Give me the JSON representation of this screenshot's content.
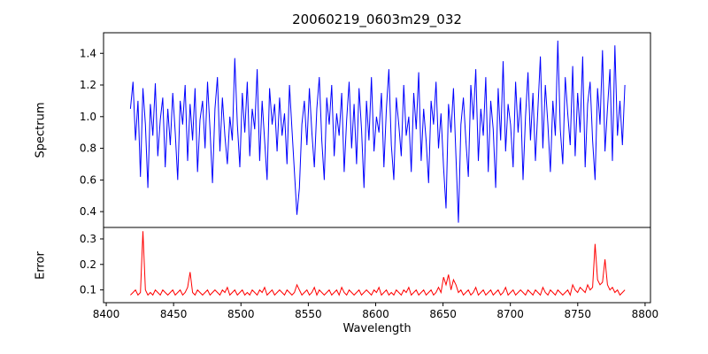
{
  "chart_data": {
    "type": "line",
    "title": "20060219_0603m29_032",
    "xlabel": "Wavelength",
    "xlim": [
      8398,
      8804
    ],
    "xticks": [
      "8400",
      "8450",
      "8500",
      "8550",
      "8600",
      "8650",
      "8700",
      "8750",
      "8800"
    ],
    "grid": false,
    "legend": "none",
    "panels": [
      {
        "name": "spectrum",
        "ylabel": "Spectrum",
        "ylim": [
          0.3,
          1.53
        ],
        "yticks": [
          "0.4",
          "0.6",
          "0.8",
          "1.0",
          "1.2",
          "1.4"
        ],
        "series": {
          "name": "spectrum",
          "color": "#0000ff",
          "x_start": 8418,
          "x_end": 8785,
          "values": [
            1.05,
            1.22,
            0.85,
            1.1,
            0.62,
            1.18,
            0.95,
            0.55,
            1.08,
            0.88,
            1.21,
            0.75,
            0.98,
            1.12,
            0.68,
            1.05,
            0.82,
            1.15,
            0.9,
            0.6,
            1.1,
            0.95,
            1.2,
            0.72,
            1.08,
            0.85,
            1.18,
            0.65,
            0.98,
            1.1,
            0.8,
            1.22,
            0.92,
            0.58,
            1.05,
            1.25,
            0.78,
            1.12,
            0.88,
            0.7,
            1.0,
            0.85,
            1.37,
            0.95,
            0.68,
            1.15,
            0.9,
            1.22,
            0.75,
            1.05,
            0.92,
            1.3,
            0.72,
            1.1,
            0.85,
            0.6,
            1.18,
            0.95,
            1.08,
            0.78,
            1.12,
            0.88,
            1.02,
            0.7,
            1.2,
            0.92,
            0.65,
            0.38,
            0.55,
            0.95,
            1.1,
            0.82,
            1.18,
            0.9,
            0.68,
            1.05,
            1.25,
            0.85,
            0.6,
            1.12,
            0.95,
            1.2,
            0.75,
            1.02,
            0.88,
            1.15,
            0.65,
            0.98,
            1.22,
            0.8,
            1.08,
            0.7,
            1.18,
            0.92,
            0.55,
            1.1,
            0.85,
            1.25,
            0.78,
            1.0,
            0.9,
            1.15,
            0.68,
            1.05,
            1.3,
            0.82,
            0.6,
            1.12,
            0.95,
            0.75,
            1.2,
            0.88,
            1.0,
            0.65,
            1.15,
            0.92,
            1.28,
            0.72,
            1.05,
            0.85,
            0.58,
            1.1,
            0.95,
            1.22,
            0.8,
            1.02,
            0.68,
            0.42,
            1.08,
            0.9,
            1.18,
            0.75,
            0.33,
            0.95,
            1.12,
            0.85,
            0.62,
            1.2,
            0.98,
            1.3,
            0.72,
            1.05,
            0.88,
            1.25,
            0.65,
            1.1,
            0.92,
            0.55,
            1.18,
            0.85,
            1.35,
            0.78,
            1.08,
            0.95,
            0.68,
            1.22,
            0.9,
            1.12,
            0.6,
            1.0,
            1.28,
            0.85,
            1.15,
            0.72,
            1.05,
            1.38,
            0.8,
            1.2,
            0.95,
            0.65,
            1.1,
            0.88,
            1.48,
            0.92,
            0.7,
            1.25,
            1.02,
            0.82,
            1.32,
            0.75,
            1.15,
            0.9,
            1.38,
            0.68,
            1.08,
            1.22,
            0.85,
            0.6,
            1.18,
            0.95,
            1.42,
            0.78,
            1.05,
            1.3,
            0.72,
            1.45,
            0.88,
            1.1,
            0.82,
            1.2
          ]
        }
      },
      {
        "name": "error",
        "ylabel": "Error",
        "ylim": [
          0.05,
          0.345
        ],
        "yticks": [
          "0.1",
          "0.2",
          "0.3"
        ],
        "series": {
          "name": "error",
          "color": "#ff0000",
          "x_start": 8418,
          "x_end": 8785,
          "values": [
            0.08,
            0.09,
            0.1,
            0.08,
            0.09,
            0.33,
            0.1,
            0.08,
            0.09,
            0.08,
            0.1,
            0.09,
            0.08,
            0.1,
            0.09,
            0.08,
            0.09,
            0.1,
            0.08,
            0.09,
            0.1,
            0.08,
            0.09,
            0.11,
            0.17,
            0.09,
            0.08,
            0.1,
            0.09,
            0.08,
            0.09,
            0.1,
            0.08,
            0.09,
            0.1,
            0.09,
            0.08,
            0.1,
            0.09,
            0.11,
            0.08,
            0.09,
            0.1,
            0.08,
            0.09,
            0.1,
            0.08,
            0.09,
            0.08,
            0.1,
            0.09,
            0.08,
            0.1,
            0.09,
            0.11,
            0.08,
            0.09,
            0.1,
            0.08,
            0.09,
            0.1,
            0.09,
            0.08,
            0.1,
            0.09,
            0.08,
            0.09,
            0.12,
            0.1,
            0.08,
            0.09,
            0.1,
            0.08,
            0.09,
            0.11,
            0.08,
            0.1,
            0.09,
            0.08,
            0.09,
            0.1,
            0.08,
            0.09,
            0.1,
            0.08,
            0.11,
            0.09,
            0.08,
            0.1,
            0.09,
            0.08,
            0.09,
            0.1,
            0.08,
            0.09,
            0.1,
            0.09,
            0.08,
            0.1,
            0.09,
            0.11,
            0.08,
            0.09,
            0.1,
            0.08,
            0.09,
            0.08,
            0.1,
            0.09,
            0.08,
            0.1,
            0.09,
            0.11,
            0.08,
            0.09,
            0.1,
            0.08,
            0.09,
            0.1,
            0.08,
            0.09,
            0.1,
            0.08,
            0.09,
            0.11,
            0.09,
            0.15,
            0.12,
            0.16,
            0.1,
            0.14,
            0.12,
            0.09,
            0.1,
            0.08,
            0.09,
            0.1,
            0.08,
            0.09,
            0.11,
            0.08,
            0.09,
            0.1,
            0.08,
            0.09,
            0.1,
            0.08,
            0.09,
            0.1,
            0.08,
            0.09,
            0.11,
            0.08,
            0.09,
            0.1,
            0.08,
            0.09,
            0.1,
            0.09,
            0.08,
            0.1,
            0.09,
            0.08,
            0.1,
            0.09,
            0.08,
            0.11,
            0.09,
            0.08,
            0.1,
            0.09,
            0.08,
            0.1,
            0.09,
            0.08,
            0.09,
            0.1,
            0.08,
            0.12,
            0.1,
            0.09,
            0.11,
            0.1,
            0.09,
            0.12,
            0.1,
            0.11,
            0.28,
            0.14,
            0.12,
            0.13,
            0.22,
            0.12,
            0.1,
            0.11,
            0.09,
            0.1,
            0.08,
            0.09,
            0.1
          ]
        }
      }
    ]
  }
}
